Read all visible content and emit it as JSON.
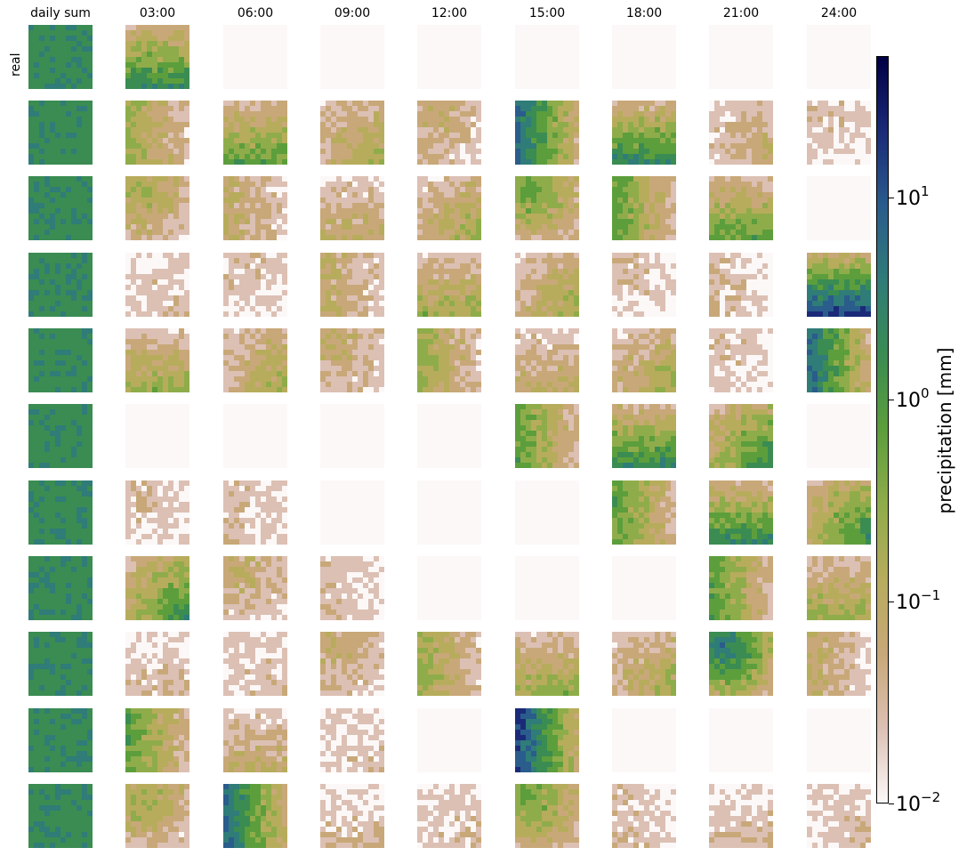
{
  "column_titles": [
    "daily sum",
    "03:00",
    "06:00",
    "09:00",
    "12:00",
    "15:00",
    "18:00",
    "21:00",
    "24:00"
  ],
  "row_labels": [
    "real",
    "",
    "",
    "",
    "",
    "",
    "",
    "",
    "",
    "",
    ""
  ],
  "colorbar": {
    "label": "precipitation [mm]",
    "scale": "log",
    "range": [
      0.01,
      50
    ],
    "ticks": [
      {
        "base": "10",
        "exp": "1",
        "value": 10
      },
      {
        "base": "10",
        "exp": "0",
        "value": 1
      },
      {
        "base": "10",
        "exp": "−1",
        "value": 0.1
      },
      {
        "base": "10",
        "exp": "−2",
        "value": 0.01
      }
    ],
    "colormap": [
      "#fcf8f7",
      "#dcc0b4",
      "#c8a878",
      "#b7ac5c",
      "#8fac4a",
      "#5c9e3c",
      "#3a8c52",
      "#2f7c78",
      "#2a5c8c",
      "#1b2a78",
      "#000044"
    ]
  },
  "chart_data": {
    "type": "heatmap",
    "title": "",
    "rows": 11,
    "columns": [
      "daily sum",
      "03:00",
      "06:00",
      "09:00",
      "12:00",
      "15:00",
      "18:00",
      "21:00",
      "24:00"
    ],
    "row_labels": [
      "real"
    ],
    "value_unit": "mm",
    "color_scale": "log",
    "color_range": [
      0.01,
      50
    ],
    "panel_levels": [
      [
        6,
        5,
        0,
        0,
        0,
        0,
        0,
        0,
        0
      ],
      [
        6,
        3,
        4,
        3,
        2,
        6,
        5,
        2,
        1
      ],
      [
        6,
        3,
        2,
        2,
        3,
        4,
        4,
        4,
        0
      ],
      [
        6,
        1,
        1,
        2,
        3,
        3,
        1,
        1,
        7
      ],
      [
        6,
        3,
        3,
        2,
        3,
        2,
        3,
        1,
        6
      ],
      [
        6,
        0,
        0,
        0,
        0,
        4,
        5,
        5,
        0
      ],
      [
        6,
        1,
        1,
        0,
        0,
        0,
        4,
        5,
        5
      ],
      [
        6,
        5,
        2,
        1,
        0,
        0,
        0,
        4,
        3
      ],
      [
        6,
        1,
        1,
        2,
        3,
        3,
        3,
        6,
        2
      ],
      [
        6,
        4,
        2,
        1,
        0,
        7,
        0,
        0,
        0
      ],
      [
        6,
        3,
        6,
        1,
        1,
        4,
        1,
        1,
        1
      ]
    ]
  }
}
